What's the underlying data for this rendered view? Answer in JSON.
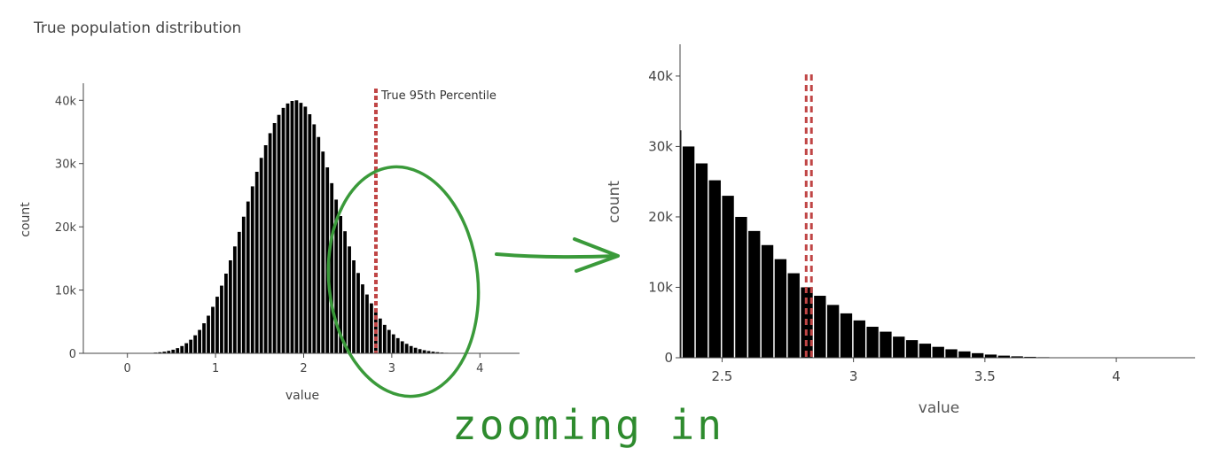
{
  "chart_data": [
    {
      "type": "bar",
      "title": "True population distribution",
      "xlabel": "value",
      "ylabel": "count",
      "xlim": [
        -0.5,
        4.45
      ],
      "ylim": [
        0,
        42000
      ],
      "x_ticks": [
        0,
        1,
        2,
        3,
        4
      ],
      "x_tick_labels": [
        "0",
        "1",
        "2",
        "3",
        "4"
      ],
      "y_ticks": [
        0,
        10000,
        20000,
        30000,
        40000
      ],
      "y_tick_labels": [
        "0",
        "10k",
        "20k",
        "30k",
        "40k"
      ],
      "bin_width": 0.05,
      "x": [
        0.2,
        0.25,
        0.3,
        0.35,
        0.4,
        0.45,
        0.5,
        0.55,
        0.6,
        0.65,
        0.7,
        0.75,
        0.8,
        0.85,
        0.9,
        0.95,
        1.0,
        1.05,
        1.1,
        1.15,
        1.2,
        1.25,
        1.3,
        1.35,
        1.4,
        1.45,
        1.5,
        1.55,
        1.6,
        1.65,
        1.7,
        1.75,
        1.8,
        1.85,
        1.9,
        1.95,
        2.0,
        2.05,
        2.1,
        2.15,
        2.2,
        2.25,
        2.3,
        2.35,
        2.4,
        2.45,
        2.5,
        2.55,
        2.6,
        2.65,
        2.7,
        2.75,
        2.8,
        2.85,
        2.9,
        2.95,
        3.0,
        3.05,
        3.1,
        3.15,
        3.2,
        3.25,
        3.3,
        3.35,
        3.4,
        3.45,
        3.5,
        3.55,
        3.6,
        3.65,
        3.7,
        3.75
      ],
      "values": [
        40,
        70,
        110,
        170,
        260,
        390,
        570,
        820,
        1150,
        1600,
        2150,
        2850,
        3700,
        4750,
        5950,
        7350,
        8950,
        10700,
        12600,
        14700,
        16900,
        19200,
        21600,
        24000,
        26400,
        28700,
        30900,
        32900,
        34800,
        36400,
        37700,
        38800,
        39500,
        39900,
        40000,
        39600,
        39000,
        37800,
        36200,
        34200,
        31900,
        29400,
        26900,
        24300,
        21700,
        19300,
        16900,
        14700,
        12700,
        10900,
        9300,
        7900,
        6600,
        5500,
        4500,
        3700,
        3000,
        2400,
        1900,
        1500,
        1150,
        880,
        660,
        490,
        360,
        260,
        180,
        120,
        80,
        50,
        30,
        15
      ],
      "annotations": [
        {
          "type": "vline",
          "x": 2.82,
          "label": "True 95th Percentile",
          "color": "#c04545"
        }
      ]
    },
    {
      "type": "bar",
      "title": "",
      "xlabel": "value",
      "ylabel": "count",
      "xlim": [
        2.34,
        4.3
      ],
      "ylim": [
        0,
        42000
      ],
      "x_ticks": [
        2.5,
        3,
        3.5,
        4
      ],
      "x_tick_labels": [
        "2.5",
        "3",
        "3.5",
        "4"
      ],
      "y_ticks": [
        0,
        10000,
        20000,
        30000,
        40000
      ],
      "y_tick_labels": [
        "0",
        "10k",
        "20k",
        "30k",
        "40k"
      ],
      "bin_width": 0.05,
      "x": [
        2.3,
        2.35,
        2.4,
        2.45,
        2.5,
        2.55,
        2.6,
        2.65,
        2.7,
        2.75,
        2.8,
        2.85,
        2.9,
        2.95,
        3.0,
        3.05,
        3.1,
        3.15,
        3.2,
        3.25,
        3.3,
        3.35,
        3.4,
        3.45,
        3.5,
        3.55,
        3.6,
        3.65,
        3.7,
        3.75,
        3.8,
        3.85
      ],
      "values": [
        32300,
        30000,
        27600,
        25200,
        23000,
        20000,
        18000,
        16000,
        14000,
        12000,
        10000,
        8800,
        7500,
        6300,
        5300,
        4400,
        3700,
        3000,
        2500,
        2000,
        1550,
        1200,
        900,
        650,
        450,
        300,
        200,
        130,
        80,
        50,
        30,
        15
      ],
      "annotations": [
        {
          "type": "vline",
          "x": 2.82,
          "color": "#c04545"
        },
        {
          "type": "vline",
          "x": 2.84,
          "color": "#c04545"
        }
      ]
    }
  ],
  "overlay": {
    "text": "zooming in",
    "color": "#2e8b2e"
  }
}
